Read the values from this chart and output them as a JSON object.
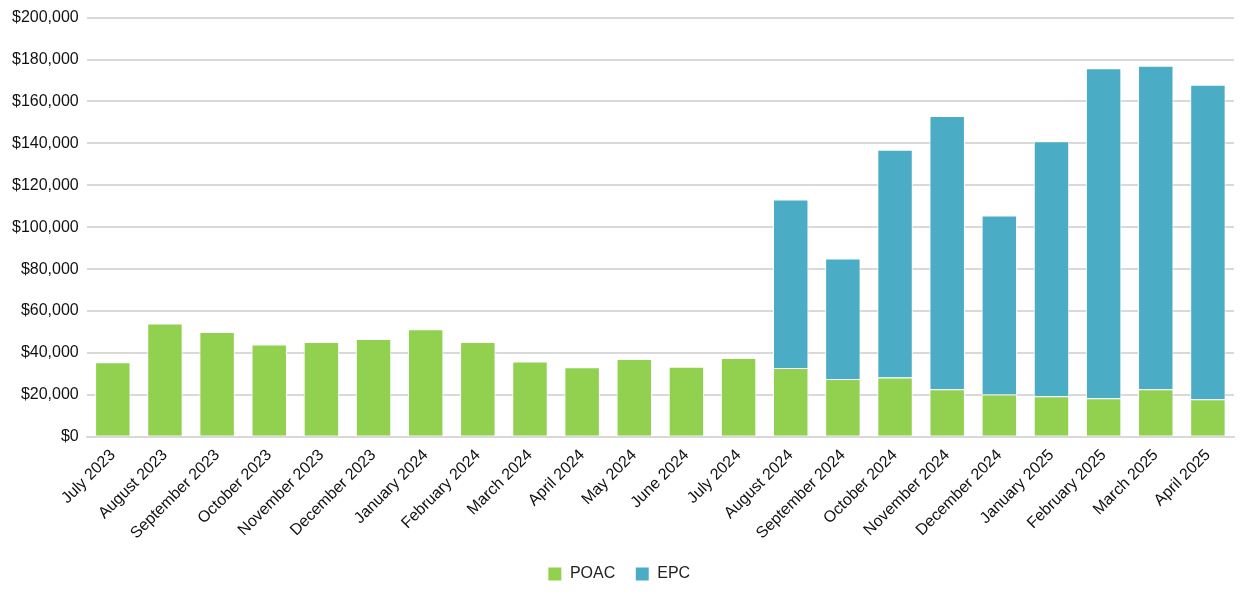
{
  "chart_data": {
    "type": "bar",
    "stacked": true,
    "categories": [
      "July 2023",
      "August 2023",
      "September 2023",
      "October 2023",
      "November 2023",
      "December 2023",
      "January 2024",
      "February 2024",
      "March 2024",
      "April 2024",
      "May 2024",
      "June 2024",
      "July 2024",
      "August 2024",
      "September 2024",
      "October 2024",
      "November 2024",
      "December 2024",
      "January 2025",
      "February 2025",
      "March 2025",
      "April 2025"
    ],
    "series": [
      {
        "name": "POAC",
        "color": "#92d050",
        "values": [
          35500,
          54000,
          50000,
          44000,
          45200,
          46700,
          51300,
          45200,
          35900,
          33200,
          37100,
          33400,
          37600,
          32800,
          27600,
          28300,
          22700,
          20200,
          19300,
          18400,
          22700,
          17900
        ]
      },
      {
        "name": "EPC",
        "color": "#4bacc6",
        "values": [
          null,
          null,
          null,
          null,
          null,
          null,
          null,
          null,
          null,
          null,
          null,
          null,
          null,
          80400,
          57500,
          108600,
          130400,
          85400,
          121700,
          157400,
          154300,
          150100
        ]
      }
    ],
    "ylim": [
      0,
      200000
    ],
    "yticks": [
      {
        "value": 0,
        "label": "$0"
      },
      {
        "value": 20000,
        "label": "$20,000"
      },
      {
        "value": 40000,
        "label": "$40,000"
      },
      {
        "value": 60000,
        "label": "$60,000"
      },
      {
        "value": 80000,
        "label": "$80,000"
      },
      {
        "value": 100000,
        "label": "$100,000"
      },
      {
        "value": 120000,
        "label": "$120,000"
      },
      {
        "value": 140000,
        "label": "$140,000"
      },
      {
        "value": 160000,
        "label": "$160,000"
      },
      {
        "value": 180000,
        "label": "$180,000"
      },
      {
        "value": 200000,
        "label": "$200,000"
      }
    ],
    "grid": "y",
    "legend": "bottom"
  }
}
